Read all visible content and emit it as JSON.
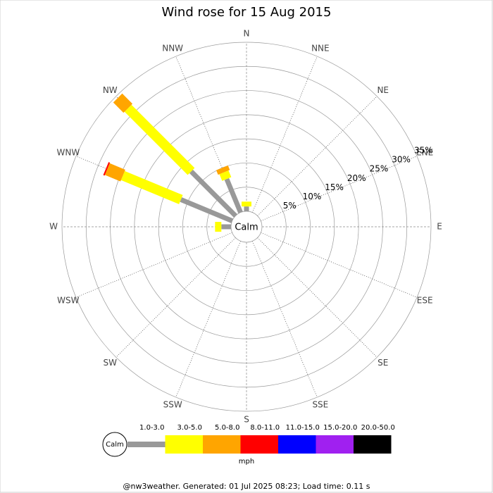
{
  "chart_data": {
    "type": "windrose",
    "title": "Wind rose for 15 Aug 2015",
    "directions": [
      "N",
      "NNE",
      "NE",
      "ENE",
      "E",
      "ESE",
      "SE",
      "SSE",
      "S",
      "SSW",
      "SW",
      "WSW",
      "W",
      "WNW",
      "NW",
      "NNW"
    ],
    "rlim": [
      0,
      35
    ],
    "rticks": [
      {
        "value": 5,
        "label": "5%"
      },
      {
        "value": 10,
        "label": "10%"
      },
      {
        "value": 15,
        "label": "15%"
      },
      {
        "value": 20,
        "label": "20%"
      },
      {
        "value": 25,
        "label": "25%"
      },
      {
        "value": 30,
        "label": "30%"
      },
      {
        "value": 35,
        "label": "35%"
      }
    ],
    "calm_label": "Calm",
    "unit": "mph",
    "series": [
      {
        "name": "1.0-3.0",
        "color": "#999999",
        "values": [
          1,
          0,
          0,
          0,
          0,
          0,
          0,
          0,
          0,
          0,
          0,
          0,
          2,
          11.5,
          13,
          7.5
        ]
      },
      {
        "name": "3.0-5.0",
        "color": "#ffff00",
        "values": [
          1,
          0,
          0,
          0,
          0,
          0,
          0,
          0,
          0,
          0,
          0,
          0,
          1.3,
          13,
          18.5,
          1.5
        ]
      },
      {
        "name": "5.0-8.0",
        "color": "#ffa500",
        "values": [
          0,
          0,
          0,
          0,
          0,
          0,
          0,
          0,
          0,
          0,
          0,
          0,
          0,
          3.5,
          3,
          1
        ]
      },
      {
        "name": "8.0-11.0",
        "color": "#ff0000",
        "values": [
          0,
          0,
          0,
          0,
          0,
          0,
          0,
          0,
          0,
          0,
          0,
          0,
          0,
          0.3,
          0,
          0
        ]
      },
      {
        "name": "11.0-15.0",
        "color": "#0000ff",
        "values": [
          0,
          0,
          0,
          0,
          0,
          0,
          0,
          0,
          0,
          0,
          0,
          0,
          0,
          0,
          0,
          0
        ]
      },
      {
        "name": "15.0-20.0",
        "color": "#a020f0",
        "values": [
          0,
          0,
          0,
          0,
          0,
          0,
          0,
          0,
          0,
          0,
          0,
          0,
          0,
          0,
          0,
          0
        ]
      },
      {
        "name": "20.0-50.0",
        "color": "#000000",
        "values": [
          0,
          0,
          0,
          0,
          0,
          0,
          0,
          0,
          0,
          0,
          0,
          0,
          0,
          0,
          0,
          0
        ]
      }
    ]
  },
  "footer": "@nw3weather. Generated: 01 Jul 2025 08:23; Load time: 0.11 s"
}
